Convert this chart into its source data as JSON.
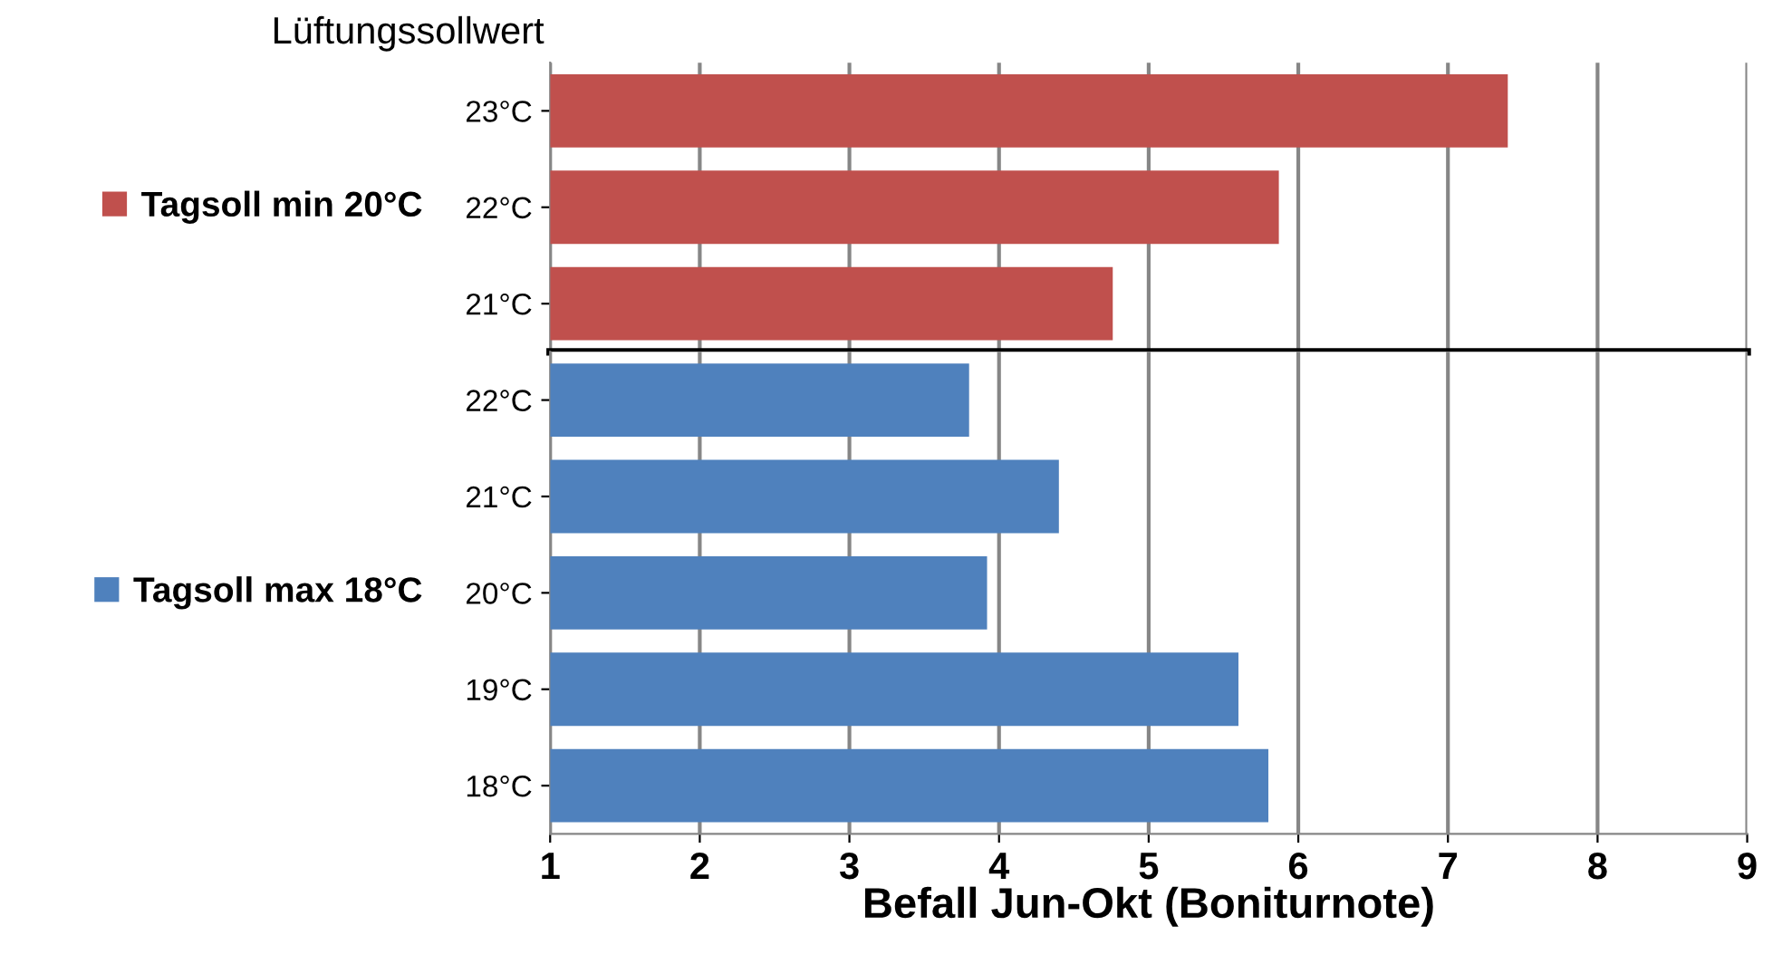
{
  "chart_data": [
    {
      "type": "bar",
      "orientation": "horizontal",
      "categories": [
        "23°C",
        "22°C",
        "21°C"
      ],
      "series": [
        {
          "name": "Tagsoll min 20°C",
          "color": "#c0504d",
          "values": [
            7.4,
            5.87,
            4.76
          ]
        }
      ],
      "ylabel": "Lüftungssollwert",
      "xlim": [
        1,
        9
      ],
      "xticks": [
        1,
        2,
        3,
        4,
        5,
        6,
        7,
        8,
        9
      ],
      "tick_labels": "y",
      "grid": "x",
      "legend": "left"
    },
    {
      "type": "bar",
      "orientation": "horizontal",
      "categories": [
        "22°C",
        "21°C",
        "20°C",
        "19°C",
        "18°C"
      ],
      "series": [
        {
          "name": "Tagsoll max 18°C",
          "color": "#4f81bd",
          "values": [
            3.8,
            4.4,
            3.92,
            5.6,
            5.8
          ]
        }
      ],
      "xlabel": "Befall Jun-Okt (Boniturnote)",
      "xlim": [
        1,
        9
      ],
      "xticks": [
        1,
        2,
        3,
        4,
        5,
        6,
        7,
        8,
        9
      ],
      "grid": "x",
      "legend": "left"
    }
  ]
}
